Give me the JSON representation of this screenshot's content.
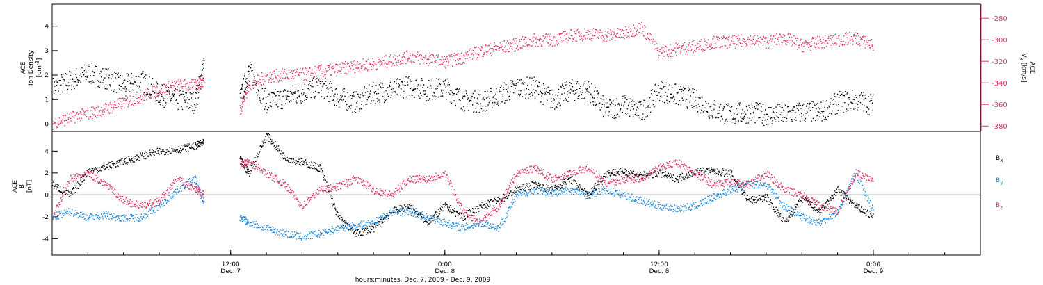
{
  "figure": {
    "xaxis_title": "hours:minutes, Dec. 7, 2009 - Dec. 9, 2009",
    "x_ticks": [
      {
        "hour": 12,
        "line1": "12:00",
        "line2": "Dec. 7"
      },
      {
        "hour": 24,
        "line1": "0:00",
        "line2": "Dec. 8"
      },
      {
        "hour": 36,
        "line1": "12:00",
        "line2": "Dec. 8"
      },
      {
        "hour": 48,
        "line1": "0:00",
        "line2": "Dec. 9"
      }
    ],
    "colors": {
      "black": "#000000",
      "red": "#dd3366",
      "blue": "#1a86d8"
    }
  },
  "chart_data": [
    {
      "type": "scatter",
      "panel": "top",
      "x_unit": "hours since 2009-12-07 00:00",
      "xlim": [
        2,
        54
      ],
      "left_axis": {
        "label_line1": "ACE",
        "label_line2": "Ion Density",
        "unit": "[cm",
        "unit_sup": "-3",
        "unit_end": "]",
        "ylim": [
          -0.3,
          4.9
        ],
        "ticks": [
          0,
          1,
          2,
          3,
          4
        ]
      },
      "right_axis": {
        "label_line1": "ACE",
        "label_main": "V",
        "label_sub": "x",
        "unit": " [km/s]",
        "ylim": [
          -385,
          -267
        ],
        "ticks": [
          -380,
          -360,
          -340,
          -320,
          -300,
          -280
        ],
        "grid": false
      },
      "series": [
        {
          "key": "density",
          "axis": "left",
          "color": "black",
          "x": [
            2,
            3,
            4,
            5,
            6,
            7,
            8,
            9,
            10,
            10.5,
            12.5,
            13,
            14,
            15,
            16,
            17,
            18,
            19,
            20,
            21,
            22,
            23,
            24,
            25,
            26,
            27,
            28,
            29,
            30,
            31,
            32,
            33,
            34,
            35,
            36,
            37,
            38,
            39,
            40,
            41,
            42,
            43,
            44,
            45,
            46,
            47,
            48
          ],
          "y": [
            1.5,
            1.8,
            2.1,
            1.9,
            1.6,
            1.8,
            1.2,
            1.0,
            0.9,
            2.5,
            1.0,
            2.2,
            0.9,
            1.1,
            1.3,
            1.6,
            1.1,
            0.9,
            1.3,
            1.4,
            1.6,
            1.4,
            1.5,
            1.0,
            0.9,
            1.2,
            1.5,
            1.5,
            1.0,
            1.4,
            1.4,
            0.6,
            0.8,
            0.5,
            1.4,
            1.2,
            1.0,
            0.6,
            0.4,
            0.5,
            0.4,
            0.4,
            0.5,
            0.5,
            0.9,
            1.0,
            0.8
          ]
        },
        {
          "key": "vx",
          "axis": "right",
          "color": "red",
          "x": [
            2,
            3,
            4,
            5,
            6,
            7,
            8,
            9,
            10,
            10.5,
            12.5,
            13,
            14,
            15,
            16,
            17,
            18,
            19,
            20,
            21,
            22,
            23,
            24,
            25,
            26,
            27,
            28,
            29,
            30,
            31,
            32,
            33,
            34,
            35,
            36,
            37,
            38,
            39,
            40,
            41,
            42,
            43,
            44,
            45,
            46,
            47,
            48
          ],
          "y": [
            -377,
            -372,
            -368,
            -364,
            -358,
            -352,
            -346,
            -342,
            -342,
            -338,
            -365,
            -342,
            -334,
            -332,
            -332,
            -329,
            -327,
            -324,
            -322,
            -319,
            -315,
            -318,
            -320,
            -316,
            -310,
            -307,
            -304,
            -300,
            -300,
            -296,
            -294,
            -296,
            -294,
            -288,
            -312,
            -308,
            -306,
            -302,
            -302,
            -300,
            -302,
            -298,
            -305,
            -302,
            -300,
            -298,
            -305
          ]
        }
      ]
    },
    {
      "type": "scatter",
      "panel": "bottom",
      "x_unit": "hours since 2009-12-07 00:00",
      "xlim": [
        2,
        54
      ],
      "left_axis": {
        "label_line1": "ACE",
        "label_main": "B",
        "unit": "[nT]",
        "ylim": [
          -5.5,
          5.8
        ],
        "ticks": [
          -4,
          -2,
          0,
          2,
          4
        ]
      },
      "zero_line": true,
      "series": [
        {
          "key": "bx",
          "name": "B",
          "name_sub": "x",
          "color": "black",
          "x": [
            2,
            3,
            4,
            5,
            6,
            7,
            8,
            9,
            10,
            10.5,
            12.5,
            13,
            14,
            15,
            16,
            17,
            18,
            19,
            20,
            21,
            22,
            23,
            24,
            25,
            26,
            27,
            28,
            29,
            30,
            31,
            32,
            33,
            34,
            35,
            36,
            37,
            38,
            39,
            40,
            41,
            42,
            43,
            44,
            45,
            46,
            47,
            48
          ],
          "y": [
            1.0,
            0.0,
            2.2,
            2.6,
            3.1,
            3.6,
            4.0,
            4.2,
            4.5,
            4.8,
            3.3,
            2.0,
            5.5,
            3.5,
            3.0,
            2.5,
            -2.0,
            -3.5,
            -3.0,
            -1.5,
            -1.0,
            -2.5,
            -1.0,
            -2.0,
            -1.0,
            -0.5,
            0.5,
            1.0,
            0.5,
            1.5,
            0.0,
            2.0,
            2.2,
            1.8,
            2.0,
            1.5,
            2.2,
            2.2,
            2.0,
            -0.5,
            -0.2,
            -2.5,
            -0.3,
            -1.5,
            0.5,
            -1.0,
            -2.0
          ]
        },
        {
          "key": "by",
          "name": "B",
          "name_sub": "y",
          "color": "blue",
          "x": [
            2,
            3,
            4,
            5,
            6,
            7,
            8,
            9,
            10,
            10.5,
            12.5,
            13,
            14,
            15,
            16,
            17,
            18,
            19,
            20,
            21,
            22,
            23,
            24,
            25,
            26,
            27,
            28,
            29,
            30,
            31,
            32,
            33,
            34,
            35,
            36,
            37,
            38,
            39,
            40,
            41,
            42,
            43,
            44,
            45,
            46,
            47,
            48
          ],
          "y": [
            -2.0,
            -1.5,
            -2.0,
            -1.8,
            -2.1,
            -2.0,
            -1.0,
            0.5,
            1.5,
            -0.8,
            -2.0,
            -2.5,
            -3.0,
            -3.5,
            -3.8,
            -3.5,
            -3.0,
            -2.8,
            -2.5,
            -1.5,
            -1.5,
            -2.0,
            -2.5,
            -3.0,
            -2.5,
            -3.0,
            0.0,
            0.5,
            0.2,
            0.5,
            0.0,
            0.5,
            0.0,
            -0.5,
            -1.0,
            -1.2,
            -1.0,
            -0.2,
            0.5,
            1.0,
            1.0,
            -1.0,
            -2.0,
            -2.5,
            -1.5,
            2.0,
            -1.5
          ]
        },
        {
          "key": "bz",
          "name": "B",
          "name_sub": "z",
          "color": "red",
          "x": [
            2,
            3,
            4,
            5,
            6,
            7,
            8,
            9,
            10,
            10.5,
            12.5,
            13,
            14,
            15,
            16,
            17,
            18,
            19,
            20,
            21,
            22,
            23,
            24,
            25,
            26,
            27,
            28,
            29,
            30,
            31,
            32,
            33,
            34,
            35,
            36,
            37,
            38,
            39,
            40,
            41,
            42,
            43,
            44,
            45,
            46,
            47,
            48
          ],
          "y": [
            -2.0,
            1.5,
            2.0,
            1.0,
            -0.5,
            -1.0,
            -0.5,
            1.5,
            0.5,
            0.0,
            2.8,
            3.0,
            2.0,
            1.0,
            -1.0,
            0.5,
            0.8,
            1.5,
            0.5,
            0.0,
            1.5,
            1.5,
            2.0,
            -1.5,
            -2.5,
            -1.0,
            2.0,
            2.5,
            1.5,
            2.0,
            2.5,
            1.0,
            1.5,
            1.5,
            2.5,
            3.0,
            2.0,
            1.0,
            1.2,
            1.0,
            2.0,
            0.5,
            0.0,
            -1.0,
            -1.5,
            2.0,
            1.5
          ]
        }
      ]
    }
  ]
}
